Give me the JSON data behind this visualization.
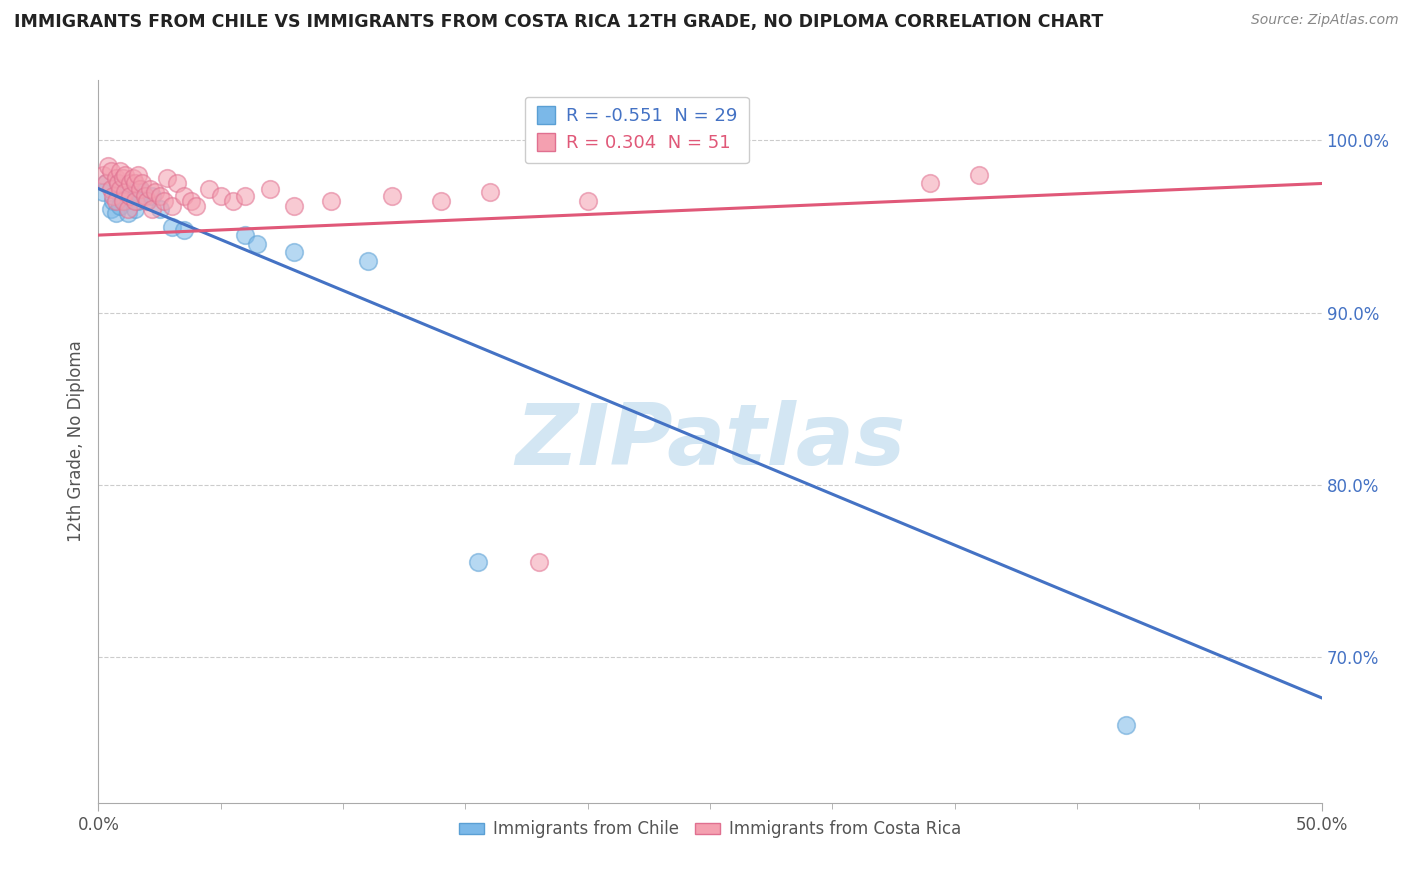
{
  "title": "IMMIGRANTS FROM CHILE VS IMMIGRANTS FROM COSTA RICA 12TH GRADE, NO DIPLOMA CORRELATION CHART",
  "source": "Source: ZipAtlas.com",
  "ylabel": "12th Grade, No Diploma",
  "xlim": [
    0.0,
    0.5
  ],
  "ylim": [
    0.615,
    1.035
  ],
  "ytick_vals": [
    0.7,
    0.8,
    0.9,
    1.0
  ],
  "yticklabels": [
    "70.0%",
    "80.0%",
    "90.0%",
    "100.0%"
  ],
  "xticklabels_ends": [
    "0.0%",
    "50.0%"
  ],
  "legend_r_chile": "-0.551",
  "legend_n_chile": "29",
  "legend_r_costarica": "0.304",
  "legend_n_costarica": "51",
  "chile_color": "#7bb8e8",
  "chile_edge_color": "#5a9fd4",
  "costarica_color": "#f4a0b0",
  "costarica_edge_color": "#e07090",
  "chile_line_color": "#4472c4",
  "costarica_line_color": "#e05878",
  "watermark": "ZIPatlas",
  "watermark_color": "#c8e0f0",
  "chile_line_x0": 0.0,
  "chile_line_y0": 0.972,
  "chile_line_x1": 0.5,
  "chile_line_y1": 0.676,
  "cr_line_x0": 0.0,
  "cr_line_y0": 0.945,
  "cr_line_x1": 0.5,
  "cr_line_y1": 0.975,
  "chile_scatter_x": [
    0.002,
    0.003,
    0.005,
    0.006,
    0.007,
    0.008,
    0.008,
    0.009,
    0.01,
    0.01,
    0.011,
    0.012,
    0.013,
    0.014,
    0.015,
    0.016,
    0.017,
    0.018,
    0.02,
    0.022,
    0.025,
    0.03,
    0.035,
    0.06,
    0.065,
    0.08,
    0.11,
    0.155,
    0.42
  ],
  "chile_scatter_y": [
    0.97,
    0.975,
    0.96,
    0.965,
    0.958,
    0.97,
    0.975,
    0.962,
    0.968,
    0.972,
    0.965,
    0.958,
    0.97,
    0.968,
    0.96,
    0.965,
    0.972,
    0.97,
    0.965,
    0.968,
    0.96,
    0.95,
    0.948,
    0.945,
    0.94,
    0.935,
    0.93,
    0.755,
    0.66
  ],
  "costarica_scatter_x": [
    0.002,
    0.003,
    0.004,
    0.005,
    0.005,
    0.006,
    0.007,
    0.007,
    0.008,
    0.009,
    0.009,
    0.01,
    0.01,
    0.011,
    0.011,
    0.012,
    0.013,
    0.013,
    0.014,
    0.015,
    0.015,
    0.016,
    0.017,
    0.018,
    0.019,
    0.02,
    0.021,
    0.022,
    0.023,
    0.025,
    0.027,
    0.028,
    0.03,
    0.032,
    0.035,
    0.038,
    0.04,
    0.045,
    0.05,
    0.055,
    0.06,
    0.07,
    0.08,
    0.095,
    0.12,
    0.14,
    0.16,
    0.18,
    0.2,
    0.34,
    0.36
  ],
  "costarica_scatter_y": [
    0.98,
    0.975,
    0.985,
    0.972,
    0.982,
    0.968,
    0.978,
    0.965,
    0.975,
    0.982,
    0.972,
    0.965,
    0.978,
    0.97,
    0.98,
    0.96,
    0.975,
    0.968,
    0.978,
    0.965,
    0.975,
    0.98,
    0.972,
    0.975,
    0.968,
    0.965,
    0.972,
    0.96,
    0.97,
    0.968,
    0.965,
    0.978,
    0.962,
    0.975,
    0.968,
    0.965,
    0.962,
    0.972,
    0.968,
    0.965,
    0.968,
    0.972,
    0.962,
    0.965,
    0.968,
    0.965,
    0.97,
    0.755,
    0.965,
    0.975,
    0.98
  ]
}
